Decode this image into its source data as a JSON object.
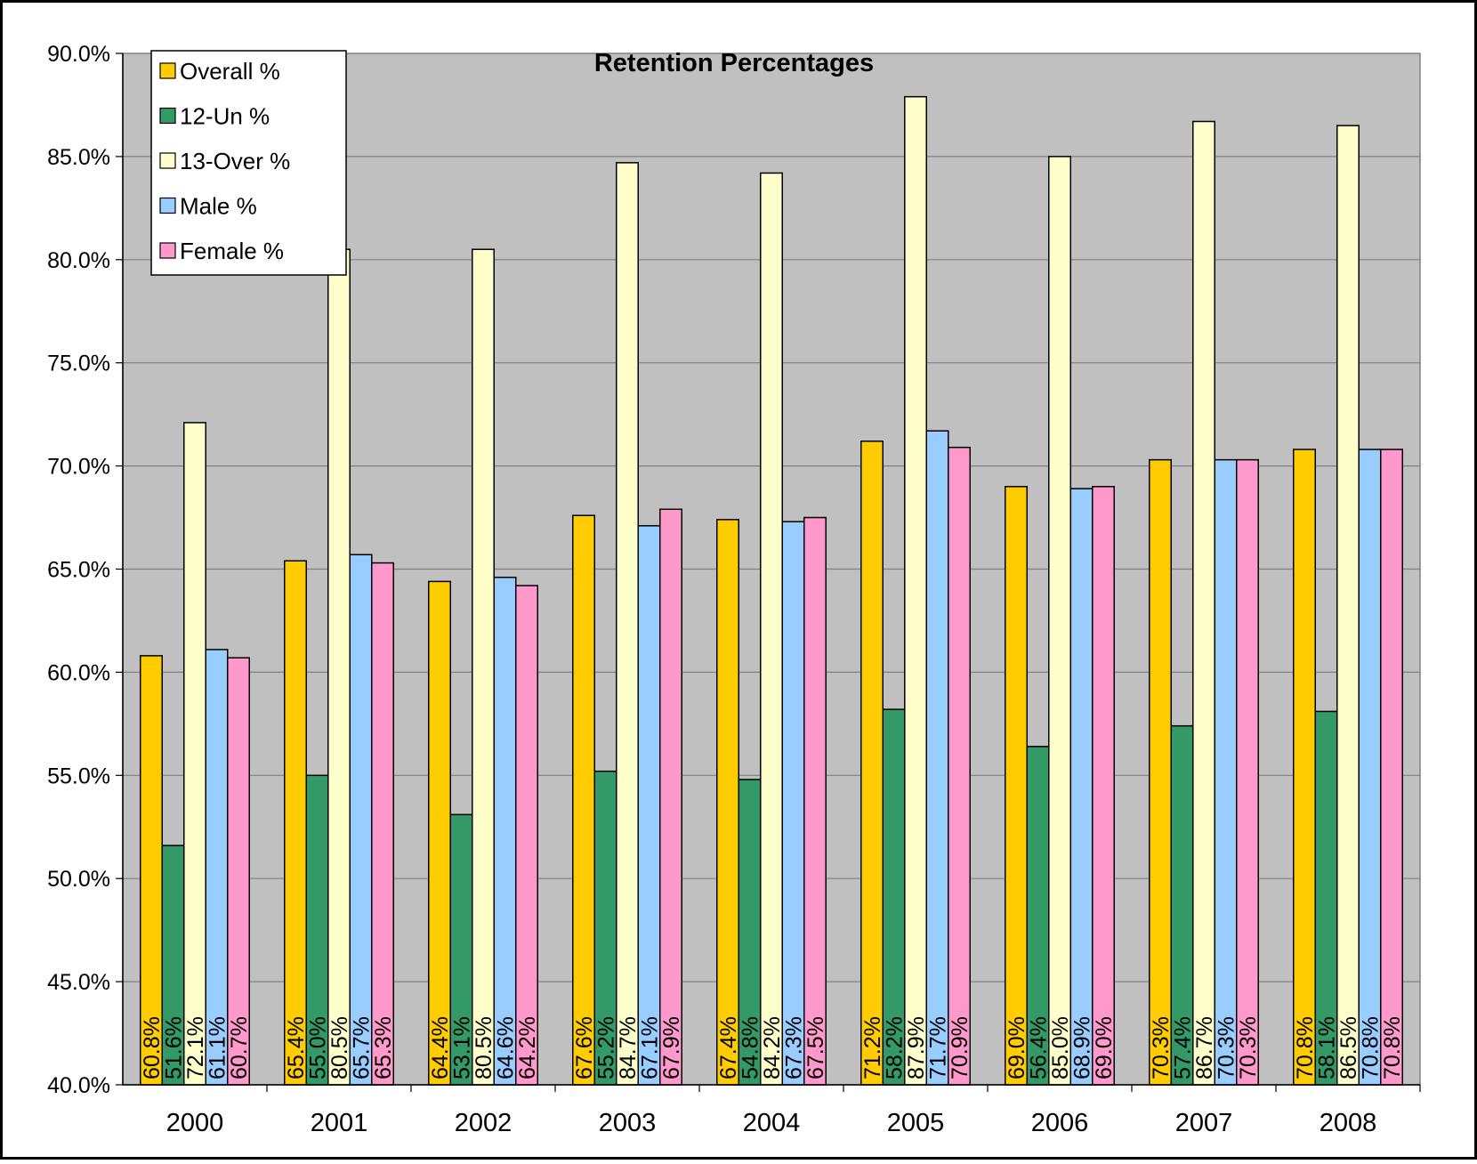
{
  "chart_data": {
    "type": "bar",
    "title": "Retention Percentages",
    "xlabel": "",
    "ylabel": "",
    "categories": [
      "2000",
      "2001",
      "2002",
      "2003",
      "2004",
      "2005",
      "2006",
      "2007",
      "2008"
    ],
    "ylim": [
      40.0,
      90.0
    ],
    "y_ticks": [
      "40.0%",
      "45.0%",
      "50.0%",
      "55.0%",
      "60.0%",
      "65.0%",
      "70.0%",
      "75.0%",
      "80.0%",
      "85.0%",
      "90.0%"
    ],
    "y_tick_step": 5,
    "grid": true,
    "legend_position": "top-left",
    "plot_background": "#c0c0c0",
    "series": [
      {
        "name": "Overall %",
        "color": "#ffcc00",
        "values": [
          60.8,
          65.4,
          64.4,
          67.6,
          67.4,
          71.2,
          69.0,
          70.3,
          70.8
        ],
        "labels": [
          "60.8%",
          "65.4%",
          "64.4%",
          "67.6%",
          "67.4%",
          "71.2%",
          "69.0%",
          "70.3%",
          "70.8%"
        ]
      },
      {
        "name": "12-Un %",
        "color": "#339966",
        "values": [
          51.6,
          55.0,
          53.1,
          55.2,
          54.8,
          58.2,
          56.4,
          57.4,
          58.1
        ],
        "labels": [
          "51.6%",
          "55.0%",
          "53.1%",
          "55.2%",
          "54.8%",
          "58.2%",
          "56.4%",
          "57.4%",
          "58.1%"
        ]
      },
      {
        "name": "13-Over %",
        "color": "#ffffcc",
        "values": [
          72.1,
          80.5,
          80.5,
          84.7,
          84.2,
          87.9,
          85.0,
          86.7,
          86.5
        ],
        "labels": [
          "72.1%",
          "80.5%",
          "80.5%",
          "84.7%",
          "84.2%",
          "87.9%",
          "85.0%",
          "86.7%",
          "86.5%"
        ]
      },
      {
        "name": "Male %",
        "color": "#99ccff",
        "values": [
          61.1,
          65.7,
          64.6,
          67.1,
          67.3,
          71.7,
          68.9,
          70.3,
          70.8
        ],
        "labels": [
          "61.1%",
          "65.7%",
          "64.6%",
          "67.1%",
          "67.3%",
          "71.7%",
          "68.9%",
          "70.3%",
          "70.8%"
        ]
      },
      {
        "name": "Female %",
        "color": "#ff99cc",
        "values": [
          60.7,
          65.3,
          64.2,
          67.9,
          67.5,
          70.9,
          69.0,
          70.3,
          70.8
        ],
        "labels": [
          "60.7%",
          "65.3%",
          "64.2%",
          "67.9%",
          "67.5%",
          "70.9%",
          "69.0%",
          "70.3%",
          "70.8%"
        ]
      }
    ]
  }
}
